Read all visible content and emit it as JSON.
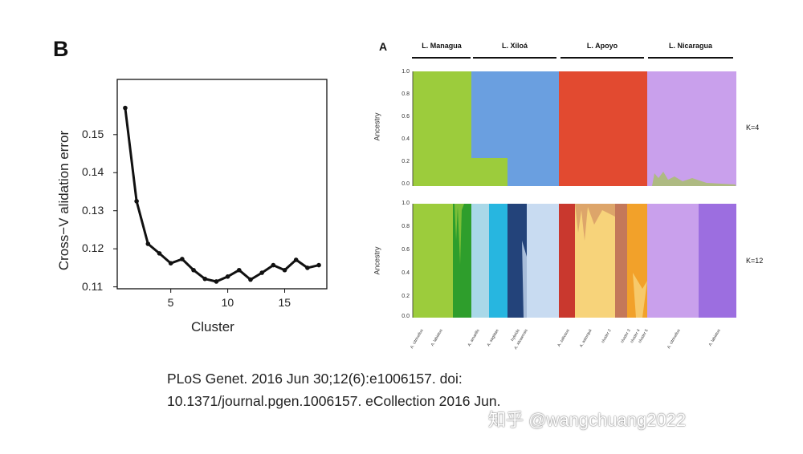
{
  "panel_b": {
    "letter": "B",
    "chart_data": {
      "type": "line",
      "xlabel": "Cluster",
      "ylabel": "Cross−V alidation error",
      "x": [
        1,
        2,
        3,
        4,
        5,
        6,
        7,
        8,
        9,
        10,
        11,
        12,
        13,
        14,
        15,
        16,
        17,
        18
      ],
      "y": [
        0.157,
        0.1325,
        0.1213,
        0.1188,
        0.1162,
        0.1173,
        0.1144,
        0.1121,
        0.1114,
        0.1127,
        0.1144,
        0.1119,
        0.1137,
        0.1157,
        0.1144,
        0.1171,
        0.115,
        0.1157
      ],
      "xlim": [
        0.3,
        18.7
      ],
      "ylim": [
        0.1095,
        0.1645
      ],
      "xticks": [
        "5",
        "10",
        "15"
      ],
      "yticks": [
        "0.11",
        "0.12",
        "0.13",
        "0.14",
        "0.15"
      ],
      "grid": false,
      "color": "#111111"
    }
  },
  "panel_a": {
    "letter": "A",
    "lakes": [
      "L. Managua",
      "L. Xiloá",
      "L. Apoyo",
      "L. Nicaragua"
    ],
    "ylabel": "Ancestry",
    "yticks": [
      "1.0",
      "0.8",
      "0.6",
      "0.4",
      "0.2",
      "0.0"
    ],
    "k_labels": [
      "K=4",
      "K=12"
    ],
    "species_labels": [
      "A. citrinellus",
      "A. labiatus",
      "A. amarillo",
      "A. sagittae",
      "A. xiloaensis",
      "A. zaliosus",
      "A. astorquii",
      "A. chancho",
      "A. flaveolus",
      "A. citrinellus",
      "A. labiatus",
      "hybrids",
      "cluster 2",
      "cluster 3",
      "cluster 4",
      "cluster 5"
    ],
    "colors": {
      "lime": "#9ccc3c",
      "green_dark": "#2e9e2c",
      "blue": "#6a9fe0",
      "red": "#e24a30",
      "lavender": "#c9a0ec",
      "light_blue": "#a9d8e8",
      "cyan": "#27b6e0",
      "navy": "#23437a",
      "pale_blue": "#c8dbf1",
      "dark_red": "#c9382e",
      "yellow": "#f7d37a",
      "brown": "#c4785a",
      "orange": "#f2a12a",
      "purple": "#9c6ee0"
    }
  },
  "citation": {
    "line1": "PLoS Genet. 2016 Jun 30;12(6):e1006157. doi:",
    "line2": "10.1371/journal.pgen.1006157. eCollection 2016 Jun."
  },
  "watermark": "知乎 @wangchuang2022"
}
